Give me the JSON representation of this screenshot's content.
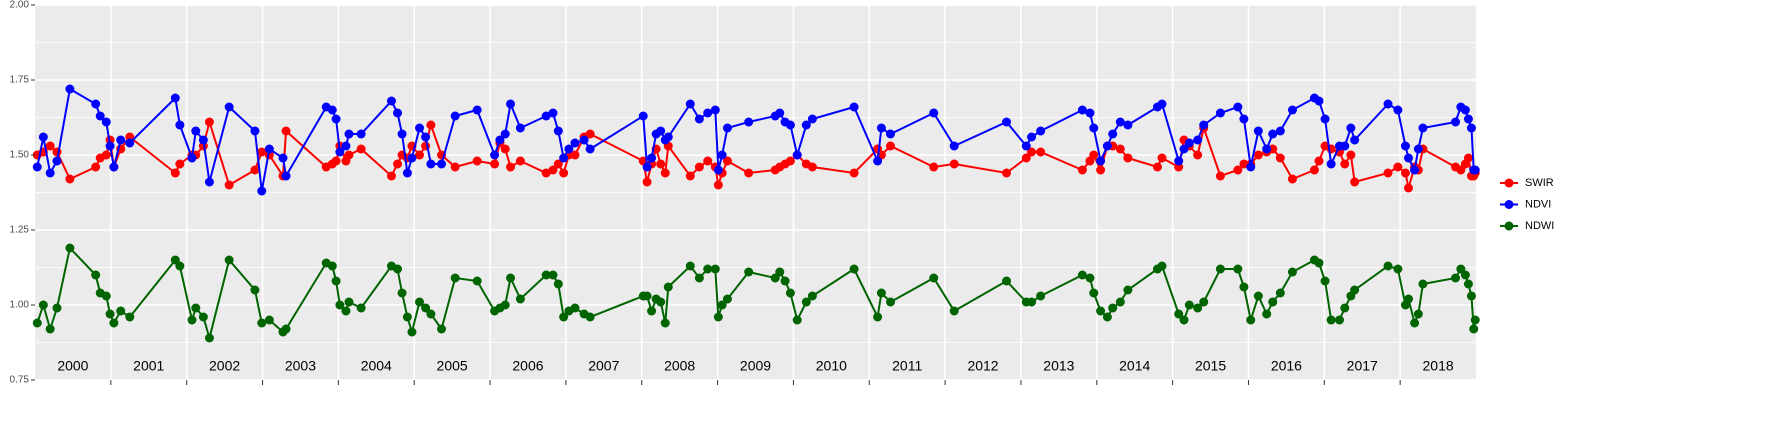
{
  "chart_data": {
    "type": "line",
    "categories": [
      "2000",
      "2001",
      "2002",
      "2003",
      "2004",
      "2005",
      "2006",
      "2007",
      "2008",
      "2009",
      "2010",
      "2011",
      "2012",
      "2013",
      "2014",
      "2015",
      "2016",
      "2017",
      "2018"
    ],
    "x": [
      2000.03,
      2000.11,
      2000.2,
      2000.29,
      2000.46,
      2000.8,
      2000.86,
      2000.94,
      2000.99,
      2001.04,
      2001.13,
      2001.25,
      2001.85,
      2001.91,
      2002.07,
      2002.12,
      2002.22,
      2002.3,
      2002.56,
      2002.9,
      2002.99,
      2003.09,
      2003.27,
      2003.31,
      2003.84,
      2003.92,
      2003.97,
      2004.02,
      2004.1,
      2004.14,
      2004.3,
      2004.7,
      2004.78,
      2004.84,
      2004.91,
      2004.97,
      2005.07,
      2005.15,
      2005.22,
      2005.36,
      2005.54,
      2005.83,
      2006.06,
      2006.13,
      2006.2,
      2006.27,
      2006.4,
      2006.74,
      2006.83,
      2006.9,
      2006.97,
      2007.04,
      2007.12,
      2007.24,
      2007.32,
      2008.02,
      2008.07,
      2008.13,
      2008.19,
      2008.25,
      2008.31,
      2008.35,
      2008.64,
      2008.76,
      2008.87,
      2008.97,
      2009.01,
      2009.06,
      2009.13,
      2009.41,
      2009.76,
      2009.82,
      2009.89,
      2009.96,
      2010.05,
      2010.17,
      2010.25,
      2010.8,
      2011.11,
      2011.16,
      2011.28,
      2011.85,
      2012.12,
      2012.81,
      2013.07,
      2013.14,
      2013.26,
      2013.81,
      2013.91,
      2013.96,
      2014.05,
      2014.14,
      2014.21,
      2014.31,
      2014.41,
      2014.8,
      2014.86,
      2015.08,
      2015.15,
      2015.22,
      2015.33,
      2015.41,
      2015.63,
      2015.86,
      2015.94,
      2016.03,
      2016.13,
      2016.24,
      2016.32,
      2016.42,
      2016.58,
      2016.87,
      2016.93,
      2017.01,
      2017.09,
      2017.2,
      2017.27,
      2017.35,
      2017.4,
      2017.84,
      2017.97,
      2018.07,
      2018.11,
      2018.19,
      2018.24,
      2018.3,
      2018.73,
      2018.8,
      2018.86,
      2018.9,
      2018.94,
      2018.97,
      2018.99
    ],
    "series": [
      {
        "name": "SWIR",
        "color": "#ff0000",
        "values": [
          1.5,
          1.51,
          1.53,
          1.51,
          1.42,
          1.46,
          1.49,
          1.5,
          1.55,
          1.46,
          1.52,
          1.56,
          1.44,
          1.47,
          1.5,
          1.5,
          1.53,
          1.61,
          1.4,
          1.45,
          1.51,
          1.5,
          1.43,
          1.58,
          1.46,
          1.47,
          1.48,
          1.53,
          1.48,
          1.5,
          1.52,
          1.43,
          1.47,
          1.5,
          1.49,
          1.53,
          1.5,
          1.53,
          1.6,
          1.5,
          1.46,
          1.48,
          1.47,
          1.54,
          1.52,
          1.46,
          1.48,
          1.44,
          1.45,
          1.47,
          1.44,
          1.5,
          1.5,
          1.56,
          1.57,
          1.48,
          1.41,
          1.47,
          1.52,
          1.47,
          1.44,
          1.53,
          1.43,
          1.46,
          1.48,
          1.46,
          1.4,
          1.44,
          1.48,
          1.44,
          1.45,
          1.46,
          1.47,
          1.48,
          1.5,
          1.47,
          1.46,
          1.44,
          1.52,
          1.5,
          1.53,
          1.46,
          1.47,
          1.44,
          1.49,
          1.51,
          1.51,
          1.45,
          1.48,
          1.5,
          1.45,
          1.53,
          1.53,
          1.52,
          1.49,
          1.46,
          1.49,
          1.46,
          1.55,
          1.53,
          1.5,
          1.59,
          1.43,
          1.45,
          1.47,
          1.47,
          1.5,
          1.51,
          1.52,
          1.49,
          1.42,
          1.45,
          1.48,
          1.53,
          1.52,
          1.51,
          1.47,
          1.5,
          1.41,
          1.44,
          1.46,
          1.44,
          1.39,
          1.46,
          1.45,
          1.52,
          1.46,
          1.45,
          1.47,
          1.49,
          1.43,
          1.43,
          1.44
        ]
      },
      {
        "name": "NDVI",
        "color": "#0000ff",
        "values": [
          1.46,
          1.56,
          1.44,
          1.48,
          1.72,
          1.67,
          1.63,
          1.61,
          1.53,
          1.46,
          1.55,
          1.54,
          1.69,
          1.6,
          1.49,
          1.58,
          1.55,
          1.41,
          1.66,
          1.58,
          1.38,
          1.52,
          1.49,
          1.43,
          1.66,
          1.65,
          1.62,
          1.51,
          1.53,
          1.57,
          1.57,
          1.68,
          1.64,
          1.57,
          1.44,
          1.49,
          1.59,
          1.56,
          1.47,
          1.47,
          1.63,
          1.65,
          1.5,
          1.55,
          1.57,
          1.67,
          1.59,
          1.63,
          1.64,
          1.58,
          1.49,
          1.52,
          1.54,
          1.55,
          1.52,
          1.63,
          1.46,
          1.49,
          1.57,
          1.58,
          1.55,
          1.56,
          1.67,
          1.62,
          1.64,
          1.65,
          1.45,
          1.5,
          1.59,
          1.61,
          1.63,
          1.64,
          1.61,
          1.6,
          1.5,
          1.6,
          1.62,
          1.66,
          1.48,
          1.59,
          1.57,
          1.64,
          1.53,
          1.61,
          1.53,
          1.56,
          1.58,
          1.65,
          1.64,
          1.59,
          1.48,
          1.53,
          1.57,
          1.61,
          1.6,
          1.66,
          1.67,
          1.48,
          1.52,
          1.54,
          1.55,
          1.6,
          1.64,
          1.66,
          1.62,
          1.46,
          1.58,
          1.52,
          1.57,
          1.58,
          1.65,
          1.69,
          1.68,
          1.62,
          1.47,
          1.53,
          1.53,
          1.59,
          1.55,
          1.67,
          1.65,
          1.53,
          1.49,
          1.45,
          1.52,
          1.59,
          1.61,
          1.66,
          1.65,
          1.62,
          1.59,
          1.45,
          1.45
        ]
      },
      {
        "name": "NDWI",
        "color": "#006400",
        "values": [
          0.94,
          1.0,
          0.92,
          0.99,
          1.19,
          1.1,
          1.04,
          1.03,
          0.97,
          0.94,
          0.98,
          0.96,
          1.15,
          1.13,
          0.95,
          0.99,
          0.96,
          0.89,
          1.15,
          1.05,
          0.94,
          0.95,
          0.91,
          0.92,
          1.14,
          1.13,
          1.08,
          1.0,
          0.98,
          1.01,
          0.99,
          1.13,
          1.12,
          1.04,
          0.96,
          0.91,
          1.01,
          0.99,
          0.97,
          0.92,
          1.09,
          1.08,
          0.98,
          0.99,
          1.0,
          1.09,
          1.02,
          1.1,
          1.1,
          1.07,
          0.96,
          0.98,
          0.99,
          0.97,
          0.96,
          1.03,
          1.03,
          0.98,
          1.02,
          1.01,
          0.94,
          1.06,
          1.13,
          1.09,
          1.12,
          1.12,
          0.96,
          1.0,
          1.02,
          1.11,
          1.09,
          1.11,
          1.08,
          1.04,
          0.95,
          1.01,
          1.03,
          1.12,
          0.96,
          1.04,
          1.01,
          1.09,
          0.98,
          1.08,
          1.01,
          1.01,
          1.03,
          1.1,
          1.09,
          1.04,
          0.98,
          0.96,
          0.99,
          1.01,
          1.05,
          1.12,
          1.13,
          0.97,
          0.95,
          1.0,
          0.99,
          1.01,
          1.12,
          1.12,
          1.06,
          0.95,
          1.03,
          0.97,
          1.01,
          1.04,
          1.11,
          1.15,
          1.14,
          1.08,
          0.95,
          0.95,
          0.99,
          1.03,
          1.05,
          1.13,
          1.12,
          1.0,
          1.02,
          0.94,
          0.97,
          1.07,
          1.09,
          1.12,
          1.1,
          1.07,
          1.03,
          0.92,
          0.95
        ]
      }
    ],
    "xlim": [
      2000,
      2019
    ],
    "x_gridlines": [
      2001,
      2002,
      2003,
      2004,
      2005,
      2006,
      2007,
      2008,
      2009,
      2010,
      2011,
      2012,
      2013,
      2014,
      2015,
      2016,
      2017,
      2018
    ],
    "ylim": [
      0.75,
      2.0
    ],
    "yticks": [
      {
        "value": 0.75,
        "label": "0.75"
      },
      {
        "value": 1.0,
        "label": "1.00"
      },
      {
        "value": 1.25,
        "label": "1.25"
      },
      {
        "value": 1.5,
        "label": "1.50"
      },
      {
        "value": 1.75,
        "label": "1.75"
      },
      {
        "value": 2.0,
        "label": "2.00"
      }
    ],
    "grid": true,
    "legend": "right"
  }
}
